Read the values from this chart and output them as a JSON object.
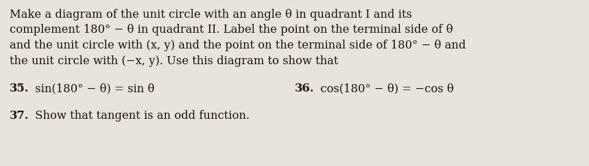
{
  "background_color": "#e8e4dc",
  "line1": "Make a diagram of the unit circle with an angle θ in quadrant I and its",
  "line2": "complement 180° − θ in quadrant II. Label the point on the terminal side of θ",
  "line3": "and the unit circle with (x, y) and the point on the terminal side of 180° − θ and",
  "line4": "the unit circle with (−x, y). Use this diagram to show that",
  "item35_label": "35.",
  "item35_text": " sin(180° − θ) = sin θ",
  "item36_label": "36.",
  "item36_text": " cos(180° − θ) = −cos θ",
  "item37_label": "37.",
  "item37_text": " Show that tangent is an odd function.",
  "text_color": "#1a1208",
  "font_size_body": 11.8,
  "font_size_items": 11.8
}
